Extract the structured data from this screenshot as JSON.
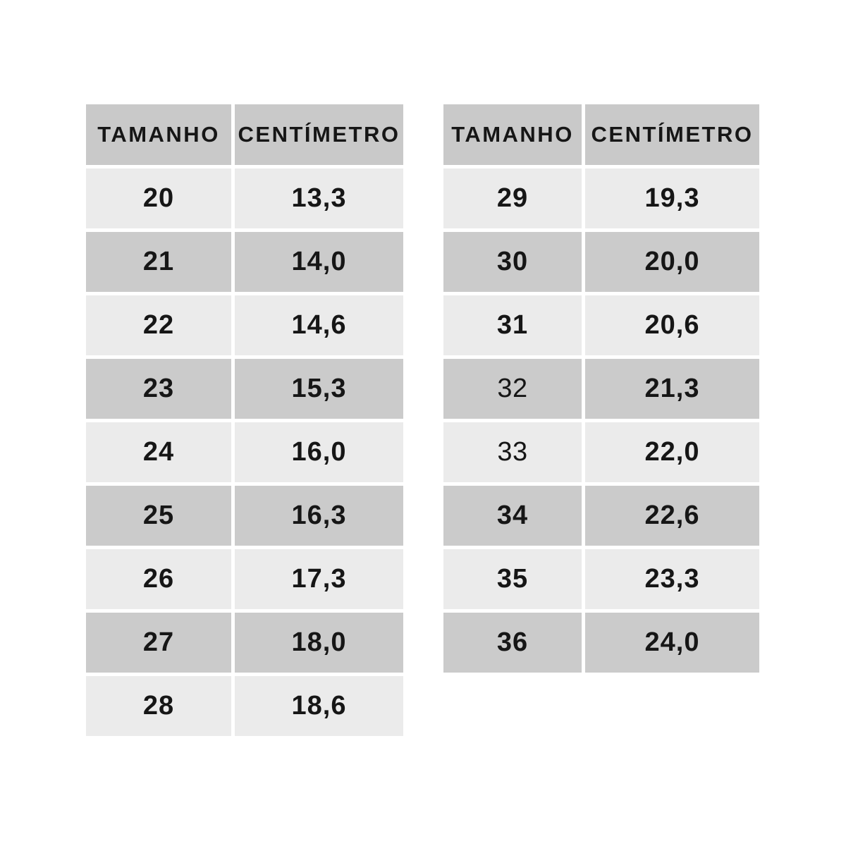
{
  "page": {
    "background": "#ffffff",
    "description": "Tabela de tamanhos de calçado infantil (duas tabelas lado a lado)"
  },
  "colors": {
    "header_bg": "#c9c9c9",
    "row_dark_bg": "#cbcbcb",
    "row_light_bg": "#ebebeb",
    "text": "#161616",
    "page_bg": "#ffffff"
  },
  "chart_data": [
    {
      "type": "table",
      "position": "left",
      "columns": [
        "TAMANHO",
        "CENTÍMETRO"
      ],
      "rows": [
        {
          "size": "20",
          "cm": "13,3"
        },
        {
          "size": "21",
          "cm": "14,0"
        },
        {
          "size": "22",
          "cm": "14,6"
        },
        {
          "size": "23",
          "cm": "15,3"
        },
        {
          "size": "24",
          "cm": "16,0"
        },
        {
          "size": "25",
          "cm": "16,3"
        },
        {
          "size": "26",
          "cm": "17,3"
        },
        {
          "size": "27",
          "cm": "18,0"
        },
        {
          "size": "28",
          "cm": "18,6"
        }
      ]
    },
    {
      "type": "table",
      "position": "right",
      "columns": [
        "TAMANHO",
        "CENTÍMETRO"
      ],
      "rows": [
        {
          "size": "29",
          "cm": "19,3"
        },
        {
          "size": "30",
          "cm": "20,0"
        },
        {
          "size": "31",
          "cm": "20,6"
        },
        {
          "size": "32",
          "cm": "21,3",
          "size_style": "regular"
        },
        {
          "size": "33",
          "cm": "22,0",
          "size_style": "regular"
        },
        {
          "size": "34",
          "cm": "22,6"
        },
        {
          "size": "35",
          "cm": "23,3"
        },
        {
          "size": "36",
          "cm": "24,0"
        }
      ]
    }
  ]
}
